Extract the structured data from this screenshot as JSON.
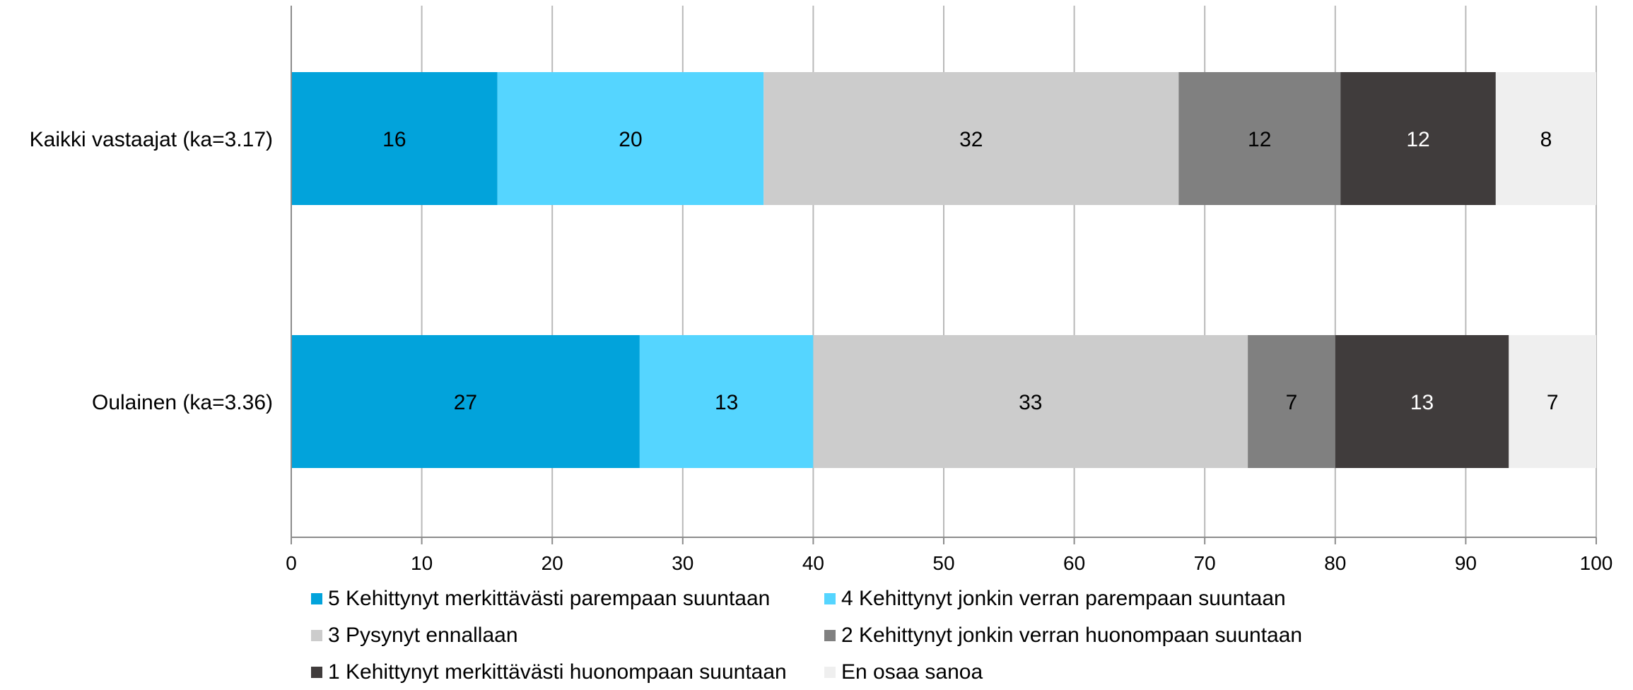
{
  "chart_data": {
    "type": "bar",
    "orientation": "horizontal",
    "stacked": true,
    "categories": [
      "Kaikki vastaajat (ka=3.17)",
      "Oulainen (ka=3.36)"
    ],
    "series": [
      {
        "name": "5 Kehittynyt merkittävästi parempaan suuntaan",
        "color": "#02a3db",
        "label_color": "#000000",
        "values": [
          15.8,
          26.7
        ],
        "labels": [
          "16",
          "27"
        ]
      },
      {
        "name": "4 Kehittynyt jonkin verran parempaan suuntaan",
        "color": "#55d5ff",
        "label_color": "#000000",
        "values": [
          20.4,
          13.3
        ],
        "labels": [
          "20",
          "13"
        ]
      },
      {
        "name": "3 Pysynyt ennallaan",
        "color": "#cccccc",
        "label_color": "#000000",
        "values": [
          31.8,
          33.3
        ],
        "labels": [
          "32",
          "33"
        ]
      },
      {
        "name": "2 Kehittynyt jonkin verran huonompaan suuntaan",
        "color": "#808080",
        "label_color": "#000000",
        "values": [
          12.4,
          6.7
        ],
        "labels": [
          "12",
          "7"
        ]
      },
      {
        "name": "1 Kehittynyt merkittävästi huonompaan suuntaan",
        "color": "#403c3c",
        "label_color": "#ffffff",
        "values": [
          11.9,
          13.3
        ],
        "labels": [
          "12",
          "13"
        ]
      },
      {
        "name": "En osaa sanoa",
        "color": "#efefef",
        "label_color": "#000000",
        "values": [
          7.7,
          6.7
        ],
        "labels": [
          "8",
          "7"
        ]
      }
    ],
    "x_ticks": [
      "0",
      "10",
      "20",
      "30",
      "40",
      "50",
      "60",
      "70",
      "80",
      "90",
      "100"
    ],
    "xlim": [
      0,
      100
    ],
    "grid": true,
    "legend_position": "bottom",
    "title": "",
    "xlabel": "",
    "ylabel": ""
  }
}
